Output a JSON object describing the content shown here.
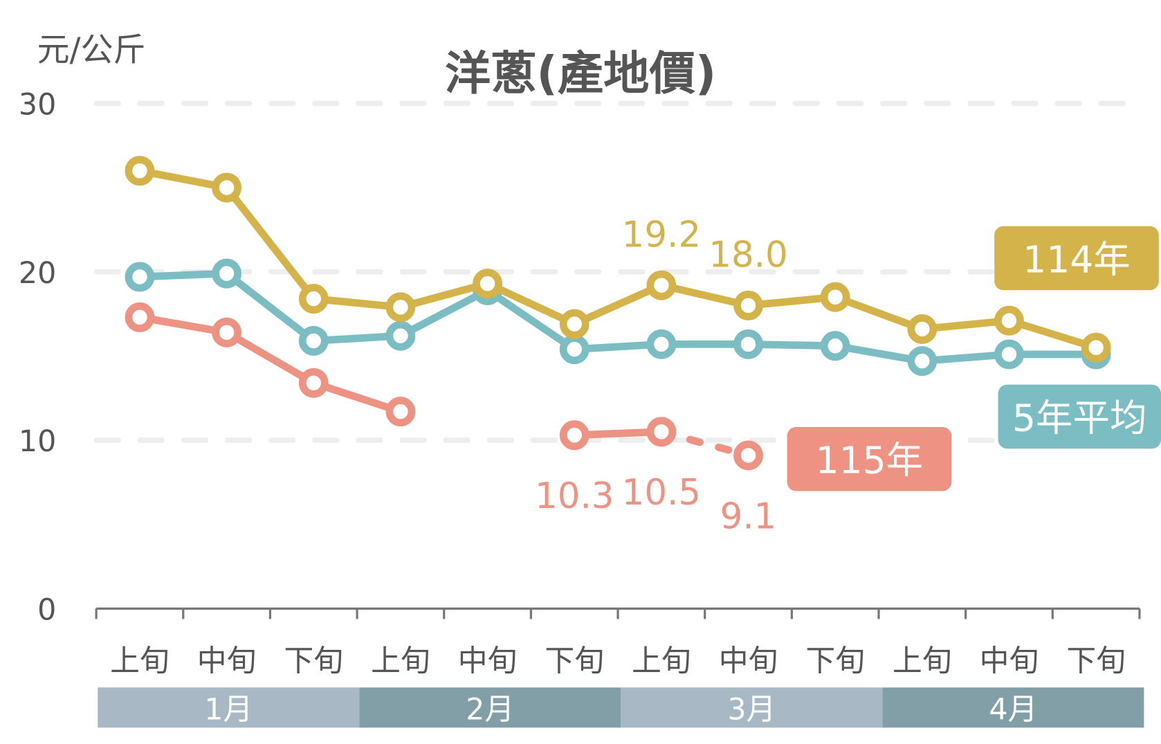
{
  "chart_data": {
    "type": "line",
    "title": "洋蔥(產地價)",
    "ylabel": "元/公斤",
    "xlabel": "",
    "ylim": [
      0,
      30
    ],
    "yticks": [
      "0",
      "10",
      "20",
      "30"
    ],
    "grid": true,
    "categories": [
      "上旬",
      "中旬",
      "下旬",
      "上旬",
      "中旬",
      "下旬",
      "上旬",
      "中旬",
      "下旬",
      "上旬",
      "中旬",
      "下旬"
    ],
    "months": [
      "1月",
      "2月",
      "3月",
      "4月"
    ],
    "series": [
      {
        "name": "114年",
        "color": "#D4B44A",
        "values": [
          26.0,
          25.0,
          18.4,
          17.9,
          19.3,
          16.9,
          19.2,
          18.0,
          18.5,
          16.6,
          17.1,
          15.5
        ],
        "labels": {
          "6": "19.2",
          "7": "18.0"
        }
      },
      {
        "name": "5年平均",
        "color": "#7BBDC2",
        "values": [
          19.7,
          19.9,
          15.9,
          16.2,
          18.9,
          15.4,
          15.7,
          15.7,
          15.6,
          14.7,
          15.1,
          15.1
        ],
        "labels": {}
      },
      {
        "name": "115年",
        "color": "#EE9384",
        "values": [
          17.3,
          16.4,
          13.4,
          11.7,
          null,
          10.3,
          10.5,
          9.1,
          null,
          null,
          null,
          null
        ],
        "dashed_from_index": 6,
        "labels": {
          "5": "10.3",
          "6": "10.5",
          "7": "9.1"
        }
      }
    ],
    "legend": "right, inline labels"
  },
  "colors": {
    "axis": "#777777",
    "grid": "#EEEEEE",
    "text": "#555555",
    "month_light": "#A8B8C4",
    "month_dark": "#829FA8"
  }
}
